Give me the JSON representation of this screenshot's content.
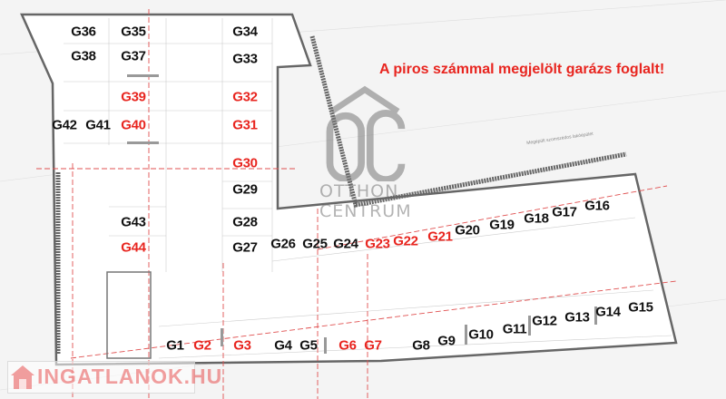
{
  "headline": "A piros számmal megjelölt garázs foglalt!",
  "colors": {
    "occupied": "#e8251f",
    "free": "#111111",
    "wall": "#555555",
    "axis": "#e05050"
  },
  "legend_meaning": {
    "red": "foglalt"
  },
  "garages": [
    {
      "label": "G1",
      "occupied": false
    },
    {
      "label": "G2",
      "occupied": true
    },
    {
      "label": "G3",
      "occupied": true
    },
    {
      "label": "G4",
      "occupied": false
    },
    {
      "label": "G5",
      "occupied": false
    },
    {
      "label": "G6",
      "occupied": true
    },
    {
      "label": "G7",
      "occupied": true
    },
    {
      "label": "G8",
      "occupied": false
    },
    {
      "label": "G9",
      "occupied": false
    },
    {
      "label": "G10",
      "occupied": false
    },
    {
      "label": "G11",
      "occupied": false
    },
    {
      "label": "G12",
      "occupied": false
    },
    {
      "label": "G13",
      "occupied": false
    },
    {
      "label": "G14",
      "occupied": false
    },
    {
      "label": "G15",
      "occupied": false
    },
    {
      "label": "G16",
      "occupied": false
    },
    {
      "label": "G17",
      "occupied": false
    },
    {
      "label": "G18",
      "occupied": false
    },
    {
      "label": "G19",
      "occupied": false
    },
    {
      "label": "G20",
      "occupied": false
    },
    {
      "label": "G21",
      "occupied": true
    },
    {
      "label": "G22",
      "occupied": true
    },
    {
      "label": "G23",
      "occupied": true
    },
    {
      "label": "G24",
      "occupied": false
    },
    {
      "label": "G25",
      "occupied": false
    },
    {
      "label": "G26",
      "occupied": false
    },
    {
      "label": "G27",
      "occupied": false
    },
    {
      "label": "G28",
      "occupied": false
    },
    {
      "label": "G29",
      "occupied": false
    },
    {
      "label": "G30",
      "occupied": true
    },
    {
      "label": "G31",
      "occupied": true
    },
    {
      "label": "G32",
      "occupied": true
    },
    {
      "label": "G33",
      "occupied": false
    },
    {
      "label": "G34",
      "occupied": false
    },
    {
      "label": "G35",
      "occupied": false
    },
    {
      "label": "G36",
      "occupied": false
    },
    {
      "label": "G37",
      "occupied": false
    },
    {
      "label": "G38",
      "occupied": false
    },
    {
      "label": "G39",
      "occupied": true
    },
    {
      "label": "G40",
      "occupied": true
    },
    {
      "label": "G41",
      "occupied": false
    },
    {
      "label": "G42",
      "occupied": false
    },
    {
      "label": "G43",
      "occupied": false
    },
    {
      "label": "G44",
      "occupied": true
    }
  ],
  "watermarks": {
    "otthon_centrum": {
      "mark": "OC",
      "line1": "OTTHON",
      "line2": "CENTRUM"
    },
    "ingatlanok": "INGATLANOK.HU"
  },
  "annotation": "Megépült szomszédos lakóépület"
}
